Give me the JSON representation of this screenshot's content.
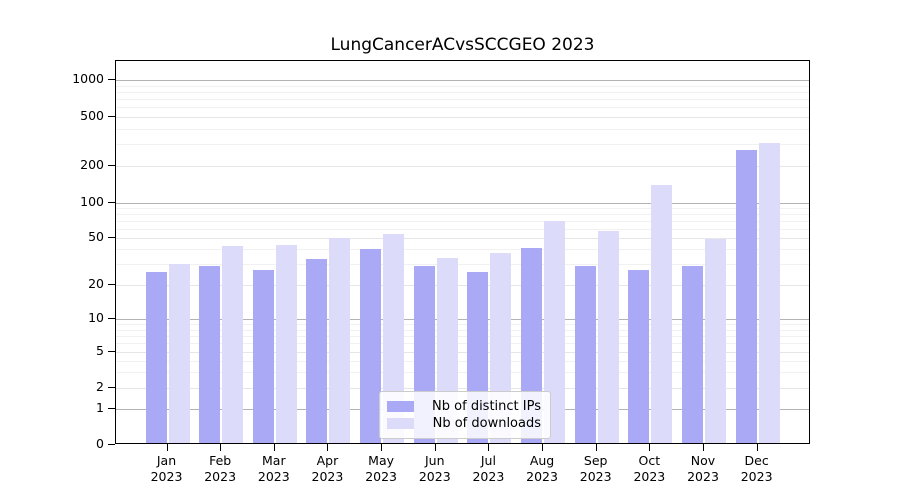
{
  "chart_data": {
    "type": "bar",
    "title": "LungCancerACvsSCCGEO 2023",
    "categories": [
      "Jan",
      "Feb",
      "Mar",
      "Apr",
      "May",
      "Jun",
      "Jul",
      "Aug",
      "Sep",
      "Oct",
      "Nov",
      "Dec"
    ],
    "year_label": "2023",
    "series": [
      {
        "name": "Nb of distinct IPs",
        "color": "#a9a9f6",
        "values": [
          26,
          29,
          27,
          33,
          40,
          29,
          26,
          41,
          29,
          27,
          29,
          270
        ]
      },
      {
        "name": "Nb of downloads",
        "color": "#dcdcfa",
        "values": [
          30,
          43,
          44,
          50,
          54,
          34,
          37,
          70,
          58,
          140,
          49,
          310
        ]
      }
    ],
    "yscale": "log-like",
    "yticks": [
      0,
      1,
      2,
      5,
      10,
      20,
      50,
      100,
      200,
      500,
      1000
    ],
    "ylim": [
      0,
      1430
    ],
    "xlabel": "",
    "ylabel": "",
    "grid": true,
    "legend_position": "lower center"
  }
}
